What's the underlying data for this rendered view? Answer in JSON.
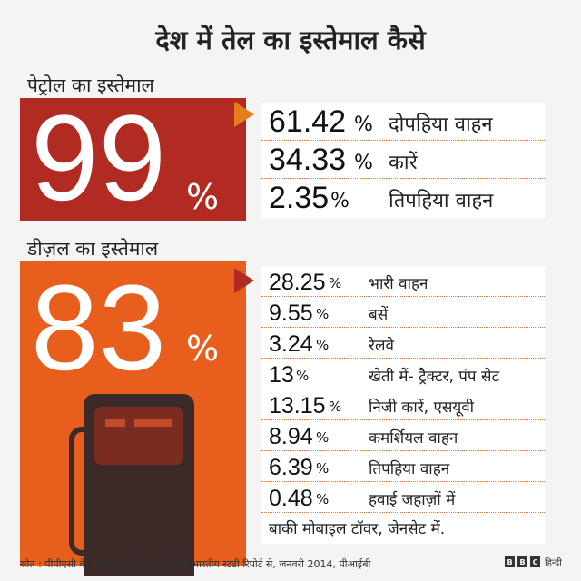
{
  "title": "देश में तेल का इस्तेमाल कैसे",
  "petrol": {
    "label": "पेट्रोल का इस्तेमाल",
    "total_value": "99",
    "total_unit": "%",
    "items": [
      {
        "value": "61.42",
        "unit": "%",
        "label": "दोपहिया वाहन"
      },
      {
        "value": "34.33",
        "unit": "%",
        "label": "कारें"
      },
      {
        "value": "2.35",
        "unit": "%",
        "label": "तिपहिया वाहन"
      }
    ]
  },
  "diesel": {
    "label": "डीज़ल का इस्तेमाल",
    "total_value": "83",
    "total_unit": "%",
    "items": [
      {
        "value": "28.25",
        "unit": "%",
        "label": "भारी वाहन"
      },
      {
        "value": "9.55",
        "unit": "%",
        "label": "बसें"
      },
      {
        "value": "3.24",
        "unit": "%",
        "label": "रेलवे"
      },
      {
        "value": "13",
        "unit": "%",
        "label": "खेती में- ट्रैक्टर, पंप सेट"
      },
      {
        "value": "13.15",
        "unit": "%",
        "label": "निजी कारें, एसयूवी"
      },
      {
        "value": "8.94",
        "unit": "%",
        "label": "कमर्शियल वाहन"
      },
      {
        "value": "6.39",
        "unit": "%",
        "label": "तिपहिया वाहन"
      },
      {
        "value": "0.48",
        "unit": "%",
        "label": "हवाई जहाज़ों में"
      }
    ],
    "remainder": "बाकी मोबाइल टॉवर, जेनसेट में."
  },
  "source": "स्रोत : पीपीएसी के सामने पेश किये गए अखिल भारतीय स्टडी रिपोर्ट से, जनवरी 2014, पीआईबी",
  "brand": {
    "letters": [
      "B",
      "B",
      "C"
    ],
    "suffix": "हिन्दी"
  },
  "colors": {
    "petrol_box": "#b22b22",
    "diesel_box": "#e85e1c",
    "petrol_arrow": "#e87d1c",
    "diesel_arrow": "#b22b22"
  },
  "chart_data": {
    "type": "table",
    "title": "देश में तेल का इस्तेमाल कैसे",
    "tables": [
      {
        "name": "पेट्रोल का इस्तेमाल",
        "total_percent": 99,
        "rows": [
          {
            "label": "दोपहिया वाहन",
            "value": 61.42
          },
          {
            "label": "कारें",
            "value": 34.33
          },
          {
            "label": "तिपहिया वाहन",
            "value": 2.35
          }
        ]
      },
      {
        "name": "डीज़ल का इस्तेमाल",
        "total_percent": 83,
        "rows": [
          {
            "label": "भारी वाहन",
            "value": 28.25
          },
          {
            "label": "बसें",
            "value": 9.55
          },
          {
            "label": "रेलवे",
            "value": 3.24
          },
          {
            "label": "खेती में- ट्रैक्टर, पंप सेट",
            "value": 13
          },
          {
            "label": "निजी कारें, एसयूवी",
            "value": 13.15
          },
          {
            "label": "कमर्शियल वाहन",
            "value": 8.94
          },
          {
            "label": "तिपहिया वाहन",
            "value": 6.39
          },
          {
            "label": "हवाई जहाज़ों में",
            "value": 0.48
          }
        ]
      }
    ]
  }
}
